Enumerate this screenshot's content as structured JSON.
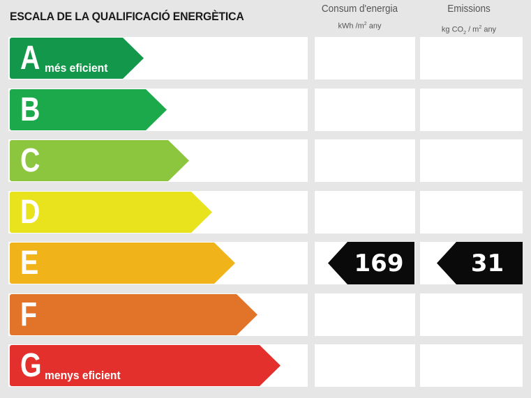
{
  "title": "ESCALA DE LA QUALIFICACIÓ ENERGÈTICA",
  "columns": {
    "consum": {
      "label": "Consum d'energia",
      "unit_pre": "kWh /m",
      "unit_sup": "2",
      "unit_post": " any"
    },
    "emissions": {
      "label": "Emissions",
      "unit_pre": "kg CO",
      "unit_sub": "2",
      "unit_mid": " / m",
      "unit_sup": "2",
      "unit_post": " any"
    }
  },
  "classes": [
    {
      "letter": "A",
      "color": "#13974a",
      "sublabel": "més eficient"
    },
    {
      "letter": "B",
      "color": "#1ba94c",
      "sublabel": ""
    },
    {
      "letter": "C",
      "color": "#8cc63e",
      "sublabel": ""
    },
    {
      "letter": "D",
      "color": "#e9e31e",
      "sublabel": ""
    },
    {
      "letter": "E",
      "color": "#f0b31a",
      "sublabel": ""
    },
    {
      "letter": "F",
      "color": "#e2742a",
      "sublabel": ""
    },
    {
      "letter": "G",
      "color": "#e3302d",
      "sublabel": "menys eficient"
    }
  ],
  "rating": {
    "class": "E",
    "consum_value": "169",
    "emissions_value": "31"
  }
}
